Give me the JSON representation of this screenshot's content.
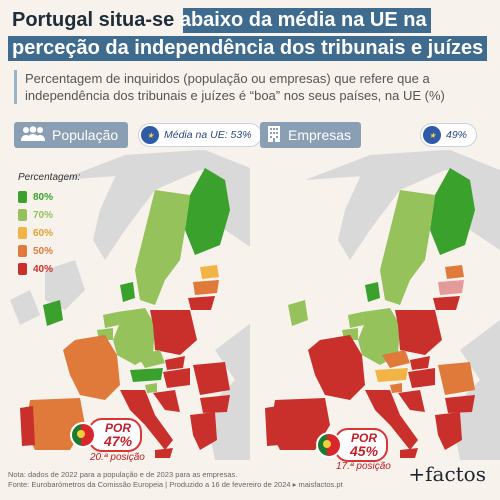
{
  "title": {
    "line1_dark": "Portugal situa-se",
    "line1_rest": "abaixo da média na UE na",
    "line2": "perceção da independência dos tribunais e juízes"
  },
  "subtitle": "Percentagem de inquiridos (população ou empresas) que refere que a independência dos tribunais e juízes é “boa” nos seus países, na UE (%)",
  "panels": [
    {
      "label": "População",
      "icon": "people-icon",
      "eu_avg": "Média na UE: 53%",
      "por_label": "POR",
      "por_value": "47%",
      "rank": "20.ª posição"
    },
    {
      "label": "Empresas",
      "icon": "building-icon",
      "eu_avg": "49%",
      "por_label": "POR",
      "por_value": "45%",
      "rank": "17.ª posição"
    }
  ],
  "legend": {
    "title": "Percentagem:",
    "items": [
      {
        "label": "80%",
        "color": "#3aa12d"
      },
      {
        "label": "70%",
        "color": "#95c25a"
      },
      {
        "label": "60%",
        "color": "#f1b445"
      },
      {
        "label": "50%",
        "color": "#e07a3b"
      },
      {
        "label": "40%",
        "color": "#c9302c"
      }
    ]
  },
  "footer": {
    "note": "Nota: dados de 2022 para a população e de 2023 para as empresas.",
    "source": "Fonte: Eurobarómetros da Comissão Europeia | Produzido a 16 de fevereiro de 2024 ▸ maisfactos.pt"
  },
  "logo": "+factos"
}
